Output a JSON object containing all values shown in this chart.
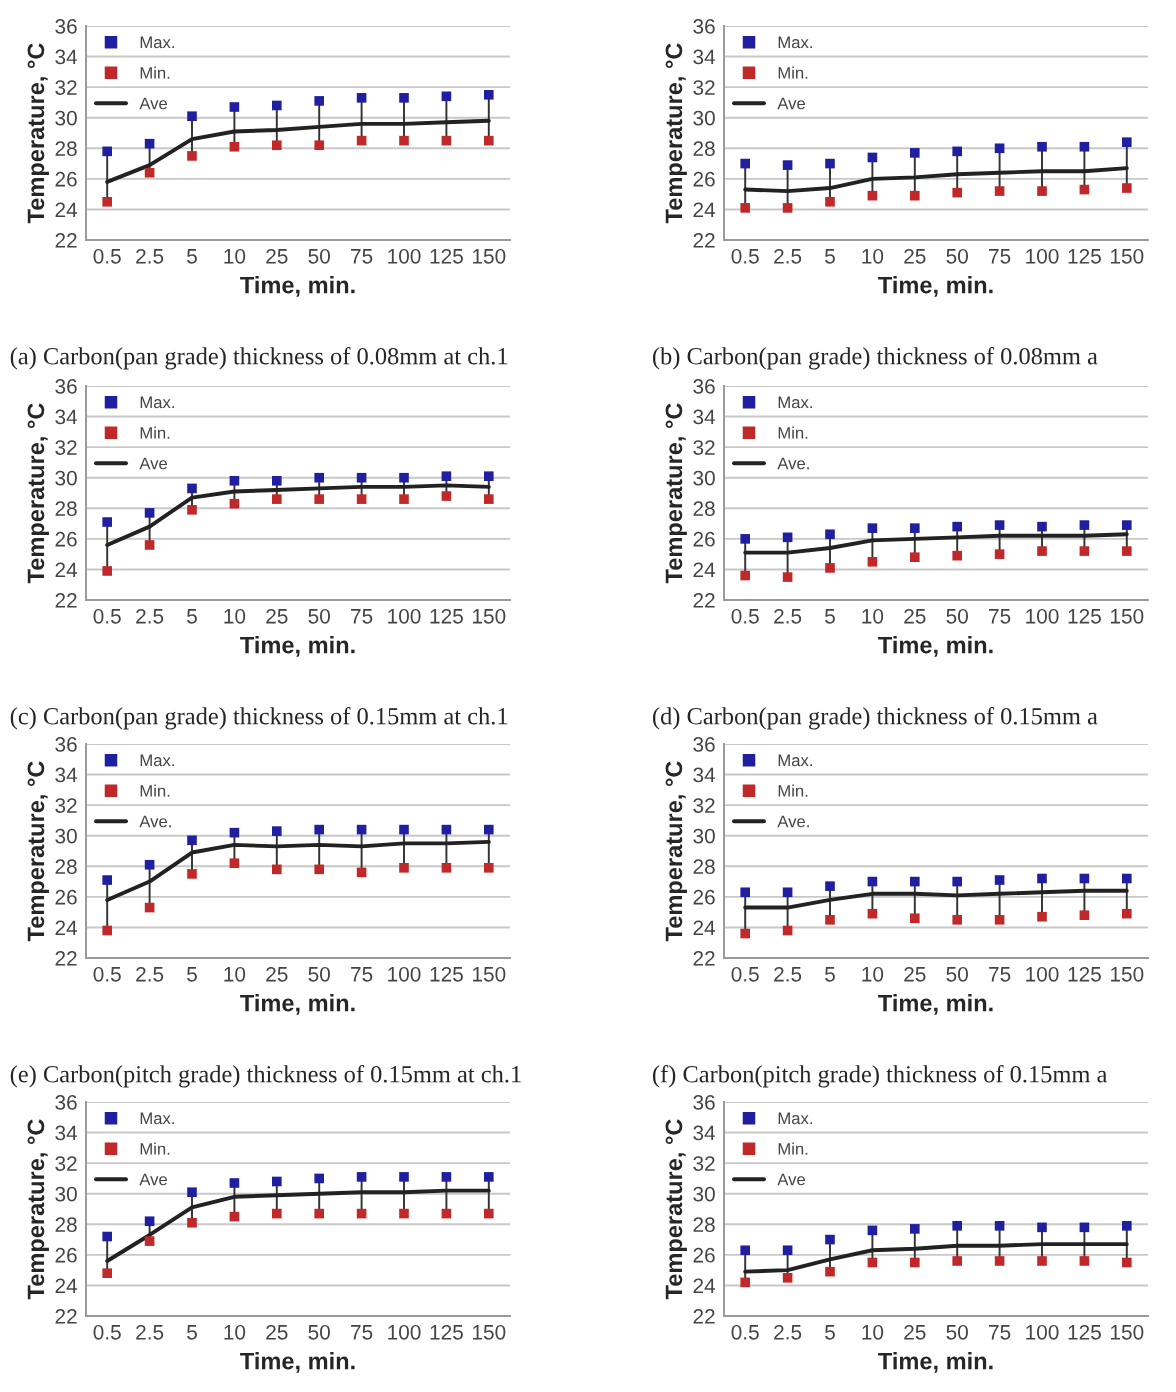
{
  "chart_data": [
    {
      "type": "line",
      "title": "(a) Carbon(pan grade) thickness of 0.08mm at ch.1",
      "xlabel": "Time, min.",
      "ylabel": "Temperature, °C",
      "categories": [
        "0.5",
        "2.5",
        "5",
        "10",
        "25",
        "50",
        "75",
        "100",
        "125",
        "150"
      ],
      "ylim": [
        22,
        36
      ],
      "yticks": [
        22,
        24,
        26,
        28,
        30,
        32,
        34,
        36
      ],
      "grid": "y",
      "legend": "top left",
      "series": [
        {
          "name": "Max.",
          "type": "scatter",
          "marker": "square",
          "color": "#1f1fa0",
          "values": [
            27.8,
            28.3,
            30.1,
            30.7,
            30.8,
            31.1,
            31.3,
            31.3,
            31.4,
            31.5
          ]
        },
        {
          "name": "Min.",
          "type": "scatter",
          "marker": "square",
          "color": "#c0282a",
          "values": [
            24.5,
            26.4,
            27.5,
            28.1,
            28.2,
            28.2,
            28.5,
            28.5,
            28.5,
            28.5
          ]
        },
        {
          "name": "Ave",
          "color": "#222222",
          "values": [
            25.8,
            26.9,
            28.6,
            29.1,
            29.2,
            29.4,
            29.6,
            29.6,
            29.7,
            29.8
          ]
        }
      ]
    },
    {
      "type": "line",
      "title": "(b) Carbon(pan grade) thickness of 0.08mm a",
      "xlabel": "Time, min.",
      "ylabel": "Temperature, °C",
      "categories": [
        "0.5",
        "2.5",
        "5",
        "10",
        "25",
        "50",
        "75",
        "100",
        "125",
        "150"
      ],
      "ylim": [
        22,
        36
      ],
      "yticks": [
        22,
        24,
        26,
        28,
        30,
        32,
        34,
        36
      ],
      "grid": "y",
      "legend": "top left",
      "series": [
        {
          "name": "Max.",
          "type": "scatter",
          "marker": "square",
          "color": "#1f1fa0",
          "values": [
            27.0,
            26.9,
            27.0,
            27.4,
            27.7,
            27.8,
            28.0,
            28.1,
            28.1,
            28.4
          ]
        },
        {
          "name": "Min.",
          "type": "scatter",
          "marker": "square",
          "color": "#c0282a",
          "values": [
            24.1,
            24.1,
            24.5,
            24.9,
            24.9,
            25.1,
            25.2,
            25.2,
            25.3,
            25.4
          ]
        },
        {
          "name": "Ave",
          "color": "#222222",
          "values": [
            25.3,
            25.2,
            25.4,
            26.0,
            26.1,
            26.3,
            26.4,
            26.5,
            26.5,
            26.7
          ]
        }
      ]
    },
    {
      "type": "line",
      "title": "(c) Carbon(pan grade) thickness of 0.15mm at ch.1",
      "xlabel": "Time, min.",
      "ylabel": "Temperature, °C",
      "categories": [
        "0.5",
        "2.5",
        "5",
        "10",
        "25",
        "50",
        "75",
        "100",
        "125",
        "150"
      ],
      "ylim": [
        22,
        36
      ],
      "yticks": [
        22,
        24,
        26,
        28,
        30,
        32,
        34,
        36
      ],
      "grid": "y",
      "legend": "top left",
      "series": [
        {
          "name": "Max.",
          "type": "scatter",
          "marker": "square",
          "color": "#1f1fa0",
          "values": [
            27.1,
            27.7,
            29.3,
            29.8,
            29.8,
            30.0,
            30.0,
            30.0,
            30.1,
            30.1
          ]
        },
        {
          "name": "Min.",
          "type": "scatter",
          "marker": "square",
          "color": "#c0282a",
          "values": [
            23.9,
            25.6,
            27.9,
            28.3,
            28.6,
            28.6,
            28.6,
            28.6,
            28.8,
            28.6
          ]
        },
        {
          "name": "Ave",
          "color": "#222222",
          "values": [
            25.6,
            26.8,
            28.7,
            29.1,
            29.2,
            29.3,
            29.4,
            29.4,
            29.5,
            29.4
          ]
        }
      ]
    },
    {
      "type": "line",
      "title": "(d) Carbon(pan grade) thickness of 0.15mm a",
      "xlabel": "Time, min.",
      "ylabel": "Temperature, °C",
      "categories": [
        "0.5",
        "2.5",
        "5",
        "10",
        "25",
        "50",
        "75",
        "100",
        "125",
        "150"
      ],
      "ylim": [
        22,
        36
      ],
      "yticks": [
        22,
        24,
        26,
        28,
        30,
        32,
        34,
        36
      ],
      "grid": "y",
      "legend": "top left",
      "series": [
        {
          "name": "Max.",
          "type": "scatter",
          "marker": "square",
          "color": "#1f1fa0",
          "values": [
            26.0,
            26.1,
            26.3,
            26.7,
            26.7,
            26.8,
            26.9,
            26.8,
            26.9,
            26.9
          ]
        },
        {
          "name": "Min.",
          "type": "scatter",
          "marker": "square",
          "color": "#c0282a",
          "values": [
            23.6,
            23.5,
            24.1,
            24.5,
            24.8,
            24.9,
            25.0,
            25.2,
            25.2,
            25.2
          ]
        },
        {
          "name": "Ave.",
          "color": "#222222",
          "values": [
            25.1,
            25.1,
            25.4,
            25.9,
            26.0,
            26.1,
            26.2,
            26.2,
            26.2,
            26.3
          ]
        }
      ]
    },
    {
      "type": "line",
      "title": "(e) Carbon(pitch grade) thickness of 0.15mm at ch.1",
      "xlabel": "Time, min.",
      "ylabel": "Temperature, °C",
      "categories": [
        "0.5",
        "2.5",
        "5",
        "10",
        "25",
        "50",
        "75",
        "100",
        "125",
        "150"
      ],
      "ylim": [
        22,
        36
      ],
      "yticks": [
        22,
        24,
        26,
        28,
        30,
        32,
        34,
        36
      ],
      "grid": "y",
      "legend": "top left",
      "series": [
        {
          "name": "Max.",
          "type": "scatter",
          "marker": "square",
          "color": "#1f1fa0",
          "values": [
            27.1,
            28.1,
            29.7,
            30.2,
            30.3,
            30.4,
            30.4,
            30.4,
            30.4,
            30.4
          ]
        },
        {
          "name": "Min.",
          "type": "scatter",
          "marker": "square",
          "color": "#c0282a",
          "values": [
            23.8,
            25.3,
            27.5,
            28.2,
            27.8,
            27.8,
            27.6,
            27.9,
            27.9,
            27.9
          ]
        },
        {
          "name": "Ave.",
          "color": "#222222",
          "values": [
            25.8,
            27.0,
            28.9,
            29.4,
            29.3,
            29.4,
            29.3,
            29.5,
            29.5,
            29.6
          ]
        }
      ]
    },
    {
      "type": "line",
      "title": "(f) Carbon(pitch grade) thickness of 0.15mm a",
      "xlabel": "Time, min.",
      "ylabel": "Temperature, °C",
      "categories": [
        "0.5",
        "2.5",
        "5",
        "10",
        "25",
        "50",
        "75",
        "100",
        "125",
        "150"
      ],
      "ylim": [
        22,
        36
      ],
      "yticks": [
        22,
        24,
        26,
        28,
        30,
        32,
        34,
        36
      ],
      "grid": "y",
      "legend": "top left",
      "series": [
        {
          "name": "Max.",
          "type": "scatter",
          "marker": "square",
          "color": "#1f1fa0",
          "values": [
            26.3,
            26.3,
            26.7,
            27.0,
            27.0,
            27.0,
            27.1,
            27.2,
            27.2,
            27.2
          ]
        },
        {
          "name": "Min.",
          "type": "scatter",
          "marker": "square",
          "color": "#c0282a",
          "values": [
            23.6,
            23.8,
            24.5,
            24.9,
            24.6,
            24.5,
            24.5,
            24.7,
            24.8,
            24.9
          ]
        },
        {
          "name": "Ave.",
          "color": "#222222",
          "values": [
            25.3,
            25.3,
            25.8,
            26.2,
            26.2,
            26.1,
            26.2,
            26.3,
            26.4,
            26.4
          ]
        }
      ]
    },
    {
      "type": "line",
      "xlabel": "Time, min.",
      "ylabel": "Temperature, °C",
      "categories": [
        "0.5",
        "2.5",
        "5",
        "10",
        "25",
        "50",
        "75",
        "100",
        "125",
        "150"
      ],
      "ylim": [
        22,
        36
      ],
      "yticks": [
        22,
        24,
        26,
        28,
        30,
        32,
        34,
        36
      ],
      "grid": "y",
      "legend": "top left",
      "series": [
        {
          "name": "Max.",
          "type": "scatter",
          "marker": "square",
          "color": "#1f1fa0",
          "values": [
            27.2,
            28.2,
            30.1,
            30.7,
            30.8,
            31.0,
            31.1,
            31.1,
            31.1,
            31.1
          ]
        },
        {
          "name": "Min.",
          "type": "scatter",
          "marker": "square",
          "color": "#c0282a",
          "values": [
            24.8,
            26.9,
            28.1,
            28.5,
            28.7,
            28.7,
            28.7,
            28.7,
            28.7,
            28.7
          ]
        },
        {
          "name": "Ave",
          "color": "#222222",
          "values": [
            25.6,
            27.3,
            29.1,
            29.8,
            29.9,
            30.0,
            30.1,
            30.1,
            30.2,
            30.2
          ]
        }
      ]
    },
    {
      "type": "line",
      "xlabel": "Time, min.",
      "ylabel": "Temperature, °C",
      "categories": [
        "0.5",
        "2.5",
        "5",
        "10",
        "25",
        "50",
        "75",
        "100",
        "125",
        "150"
      ],
      "ylim": [
        22,
        36
      ],
      "yticks": [
        22,
        24,
        26,
        28,
        30,
        32,
        34,
        36
      ],
      "grid": "y",
      "legend": "top left",
      "series": [
        {
          "name": "Max.",
          "type": "scatter",
          "marker": "square",
          "color": "#1f1fa0",
          "values": [
            26.3,
            26.3,
            27.0,
            27.6,
            27.7,
            27.9,
            27.9,
            27.8,
            27.8,
            27.9
          ]
        },
        {
          "name": "Min.",
          "type": "scatter",
          "marker": "square",
          "color": "#c0282a",
          "values": [
            24.2,
            24.5,
            24.9,
            25.5,
            25.5,
            25.6,
            25.6,
            25.6,
            25.6,
            25.5
          ]
        },
        {
          "name": "Ave",
          "color": "#222222",
          "values": [
            24.9,
            25.0,
            25.7,
            26.3,
            26.4,
            26.6,
            26.6,
            26.7,
            26.7,
            26.7
          ]
        }
      ]
    }
  ]
}
